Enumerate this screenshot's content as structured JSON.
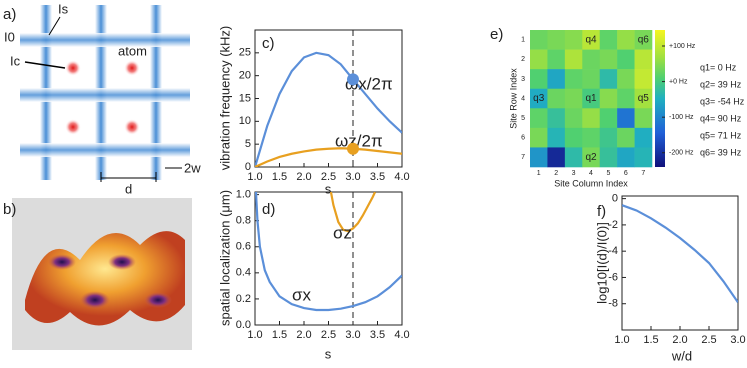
{
  "diagram_a": {
    "label": "a)",
    "ls": "Is",
    "l0": "I0",
    "lc": "Ic",
    "atom": "atom",
    "d": "d",
    "w": "2w"
  },
  "image_b": {
    "label": "b)"
  },
  "chart_data": [
    {
      "type": "line",
      "label": "c)",
      "xlabel": "s",
      "ylabel": "vibration frequency (kHz)",
      "x": [
        1.0,
        1.25,
        1.5,
        1.75,
        2.0,
        2.25,
        2.5,
        2.75,
        3.0,
        3.25,
        3.5,
        3.75,
        4.0
      ],
      "xlim": [
        1,
        4
      ],
      "xticks": [
        {
          "value": 1,
          "label": "1.0"
        },
        {
          "value": 1.5,
          "label": "1.5"
        },
        {
          "value": 2,
          "label": "2.0"
        },
        {
          "value": 2.5,
          "label": "2.5"
        },
        {
          "value": 3,
          "label": "3.0"
        },
        {
          "value": 3.5,
          "label": "3.5"
        },
        {
          "value": 4,
          "label": "4.0"
        }
      ],
      "ylim": [
        0,
        30
      ],
      "yticks": [
        0,
        5,
        10,
        15,
        20,
        25
      ],
      "series": [
        {
          "name": "ωx/2π",
          "color": "#5b8fd9",
          "values": [
            0,
            9,
            16,
            21,
            24,
            25,
            24.5,
            22.5,
            19.2,
            16,
            12.8,
            10,
            7.5
          ]
        },
        {
          "name": "ωz/2π",
          "color": "#e8a020",
          "values": [
            0,
            1.2,
            2.2,
            2.9,
            3.4,
            3.8,
            4.0,
            4.1,
            4.0,
            3.8,
            3.5,
            3.2,
            2.9
          ]
        }
      ],
      "vline": 3,
      "highlight_x": 3
    },
    {
      "type": "line",
      "label": "d)",
      "xlabel": "s",
      "ylabel": "spatial localization (μm)",
      "x": [
        1.02,
        1.05,
        1.1,
        1.2,
        1.3,
        1.5,
        1.75,
        2.0,
        2.25,
        2.5,
        2.75,
        3.0,
        3.25,
        3.5,
        3.75,
        4.0
      ],
      "xlim": [
        1,
        4
      ],
      "xticks": [
        {
          "value": 1,
          "label": "1.0"
        },
        {
          "value": 1.5,
          "label": "1.5"
        },
        {
          "value": 2,
          "label": "2.0"
        },
        {
          "value": 2.5,
          "label": "2.5"
        },
        {
          "value": 3,
          "label": "3.0"
        },
        {
          "value": 3.5,
          "label": "3.5"
        },
        {
          "value": 4,
          "label": "4.0"
        }
      ],
      "ylim": [
        0,
        1.02
      ],
      "yticks": [
        {
          "value": 0,
          "label": "0.0"
        },
        {
          "value": 0.2,
          "label": "0.2"
        },
        {
          "value": 0.4,
          "label": "0.4"
        },
        {
          "value": 0.6,
          "label": "0.6"
        },
        {
          "value": 0.8,
          "label": "0.8"
        },
        {
          "value": 1,
          "label": "1.0"
        }
      ],
      "series": [
        {
          "name": "σx",
          "color": "#5b8fd9",
          "values": [
            1.02,
            0.8,
            0.6,
            0.42,
            0.33,
            0.22,
            0.16,
            0.13,
            0.115,
            0.115,
            0.125,
            0.145,
            0.175,
            0.22,
            0.29,
            0.38
          ]
        },
        {
          "name": "σz",
          "color": "#e8a020",
          "x": [
            2.55,
            2.6,
            2.7,
            2.8,
            2.9,
            3.0,
            3.1,
            3.2,
            3.3,
            3.4,
            3.45
          ],
          "values": [
            1.02,
            0.92,
            0.79,
            0.73,
            0.72,
            0.74,
            0.78,
            0.84,
            0.91,
            0.98,
            1.02
          ]
        }
      ],
      "vline": 3
    },
    {
      "type": "heatmap",
      "label": "e)",
      "xlabel": "Site Column Index",
      "ylabel": "Site Row Index",
      "xticks": [
        1,
        2,
        3,
        4,
        5,
        6,
        7
      ],
      "yticks": [
        1,
        2,
        3,
        4,
        5,
        6,
        7
      ],
      "values": [
        [
          30,
          40,
          50,
          90,
          20,
          60,
          39
        ],
        [
          60,
          20,
          80,
          30,
          40,
          10,
          90
        ],
        [
          10,
          -60,
          20,
          30,
          -30,
          40,
          100
        ],
        [
          -54,
          30,
          40,
          0,
          50,
          20,
          71
        ],
        [
          20,
          -20,
          30,
          60,
          10,
          -120,
          40
        ],
        [
          40,
          -40,
          10,
          20,
          -10,
          30,
          -50
        ],
        [
          -80,
          -210,
          -30,
          39,
          -20,
          -60,
          -40
        ]
      ],
      "cell_labels": [
        [
          null,
          null,
          null,
          "q4",
          null,
          null,
          "q6"
        ],
        [
          null,
          null,
          null,
          null,
          null,
          null,
          null
        ],
        [
          null,
          null,
          null,
          null,
          null,
          null,
          null
        ],
        [
          "q3",
          null,
          null,
          "q1",
          null,
          null,
          "q5"
        ],
        [
          null,
          null,
          null,
          null,
          null,
          null,
          null
        ],
        [
          null,
          null,
          null,
          null,
          null,
          null,
          null
        ],
        [
          null,
          null,
          null,
          "q2",
          null,
          null,
          null
        ]
      ],
      "zlim": [
        -240,
        145
      ],
      "zticks": [
        {
          "value": 100,
          "label": "+100 Hz"
        },
        {
          "value": 0,
          "label": "+0 Hz"
        },
        {
          "value": -100,
          "label": "-100 Hz"
        },
        {
          "value": -200,
          "label": "-200 Hz"
        }
      ],
      "annotations": [
        "q1= 0 Hz",
        "q2= 39 Hz",
        "q3= -54 Hz",
        "q4= 90 Hz",
        "q5= 71 Hz",
        "q6= 39 Hz"
      ]
    },
    {
      "type": "line",
      "label": "f)",
      "xlabel": "w/d",
      "ylabel": "log10[I(d)/I(0)]",
      "x": [
        1.0,
        1.25,
        1.5,
        1.75,
        2.0,
        2.25,
        2.5,
        2.75,
        3.0
      ],
      "xlim": [
        1,
        3
      ],
      "xticks": [
        {
          "value": 1,
          "label": "1.0"
        },
        {
          "value": 1.5,
          "label": "1.5"
        },
        {
          "value": 2,
          "label": "2.0"
        },
        {
          "value": 2.5,
          "label": "2.5"
        },
        {
          "value": 3,
          "label": "3.0"
        }
      ],
      "ylim": [
        -10,
        0.2
      ],
      "yticks": [
        0,
        -2,
        -4,
        -6,
        -8
      ],
      "series": [
        {
          "name": null,
          "color": "#5b8fd9",
          "values": [
            -0.5,
            -0.9,
            -1.5,
            -2.2,
            -3.0,
            -3.9,
            -4.9,
            -6.3,
            -7.9
          ]
        }
      ]
    }
  ]
}
